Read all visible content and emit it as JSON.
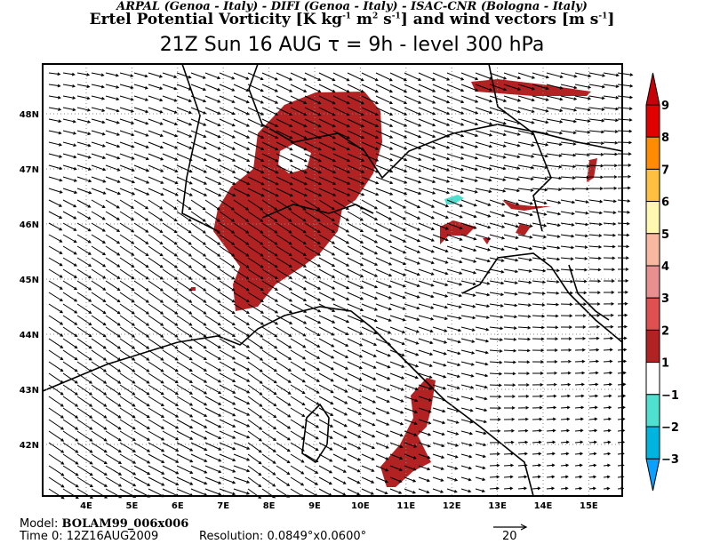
{
  "header": {
    "credits": "ARPAL (Genoa - Italy)  -  DIFI (Genoa - Italy)  -  ISAC-CNR (Bologna - Italy)",
    "title_pre": "Ertel Potential Vorticity [K kg",
    "title_sup1": "-1",
    "title_mid1": " m",
    "title_sup2": "2",
    "title_mid2": " s",
    "title_sup3": "-1",
    "title_mid3": "] and wind vectors [m s",
    "title_sup4": "-1",
    "title_end": "]",
    "subtitle": "21Z Sun 16 AUG  τ = 9h  -  level 300 hPa"
  },
  "map": {
    "lon_labels": [
      "4E",
      "5E",
      "6E",
      "7E",
      "8E",
      "9E",
      "10E",
      "11E",
      "12E",
      "13E",
      "14E",
      "15E"
    ],
    "lat_labels": [
      "48N",
      "47N",
      "46N",
      "45N",
      "44N",
      "43N",
      "42N"
    ],
    "pv_fill_color": "#b22222",
    "negative_fill_color": "#50e0d0"
  },
  "colorbar": {
    "labels": [
      "9",
      "8",
      "7",
      "6",
      "5",
      "4",
      "3",
      "2",
      "1",
      "-1",
      "-2",
      "-3"
    ],
    "colors": [
      "#c8000a",
      "#e00000",
      "#ff8c00",
      "#ffbf40",
      "#fff8b0",
      "#f8b8a0",
      "#e89090",
      "#e05050",
      "#b22222",
      "#ffffff",
      "#50e0d0",
      "#00b4e0",
      "#0aa0ff"
    ]
  },
  "footer": {
    "model_label": "Model: ",
    "model_value": "BOLAM99_006x006",
    "time_label": "Time 0: 12Z16AUG2009",
    "resolution": "Resolution: 0.0849°x0.0600°",
    "vector_scale": "20"
  }
}
